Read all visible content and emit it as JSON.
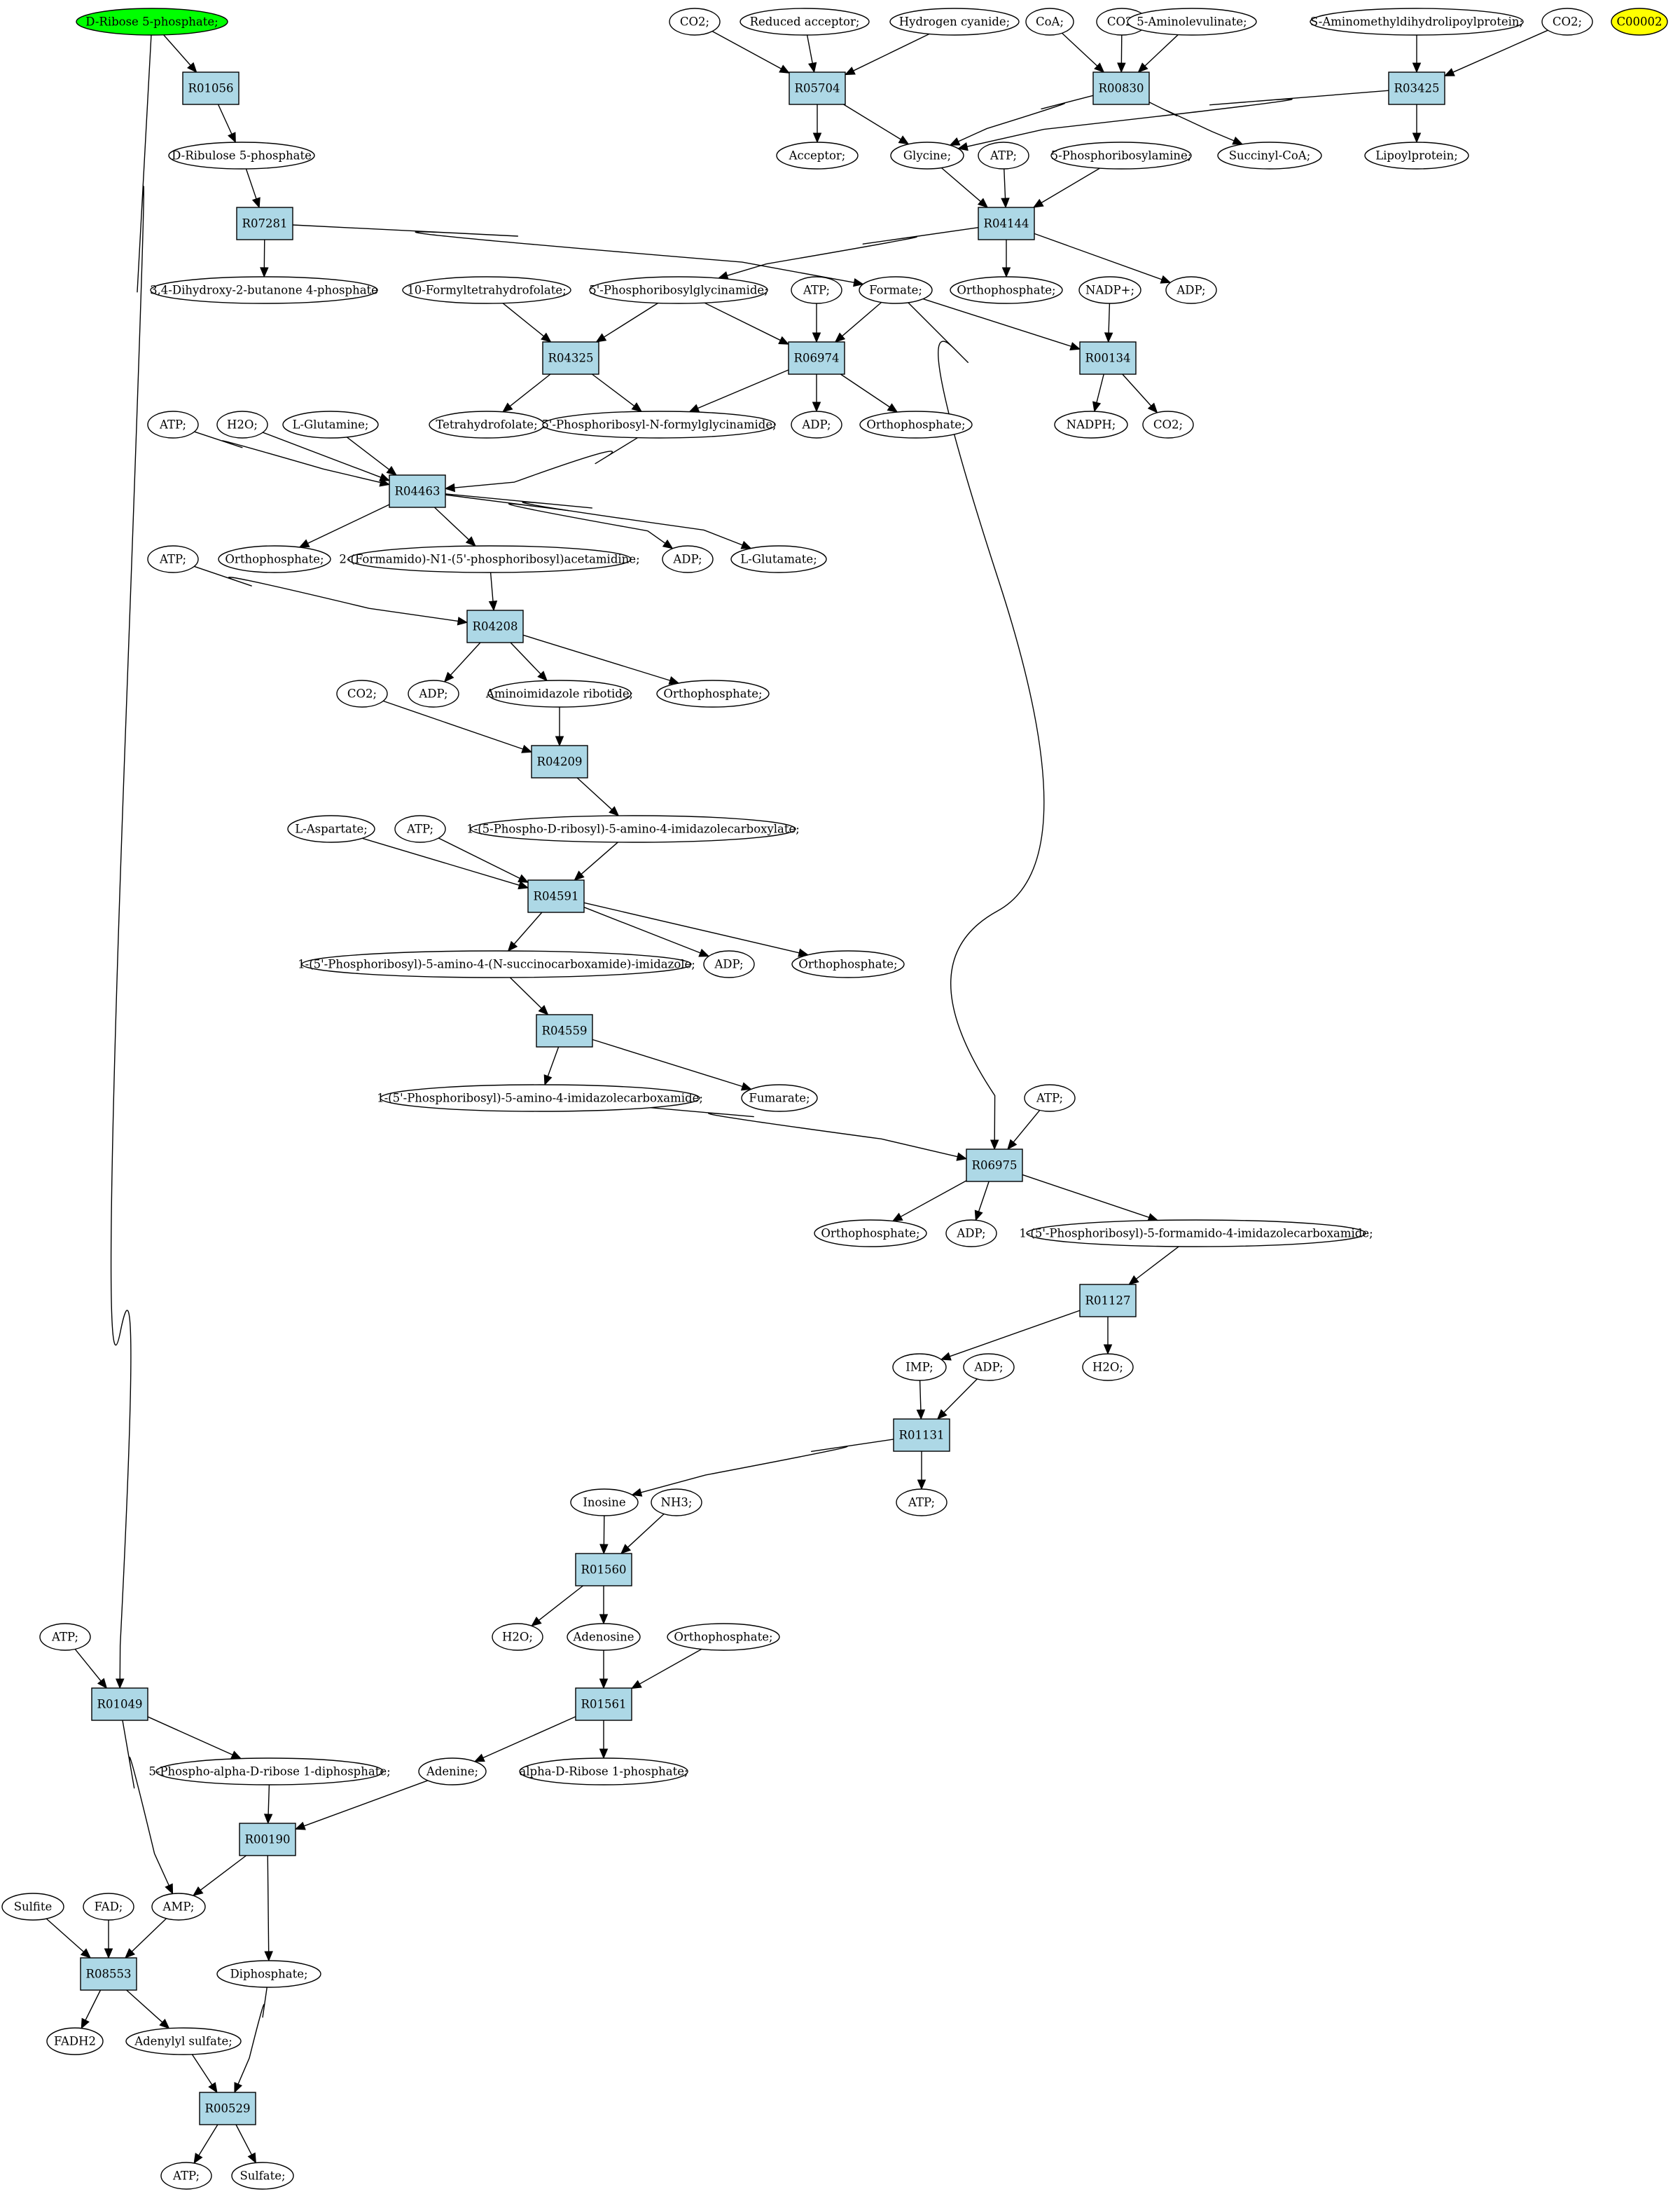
{
  "colors": {
    "compound": "#ffffff",
    "reaction": "#add8e6",
    "start": "#00ff00",
    "target": "#ffff00",
    "stroke": "#000000"
  },
  "nodes": {
    "c_r5p": {
      "label": "D-Ribose 5-phosphate;",
      "type": "start"
    },
    "r01056": {
      "label": "R01056",
      "type": "reaction"
    },
    "c_ru5p": {
      "label": "D-Ribulose 5-phosphate",
      "type": "compound"
    },
    "r07281": {
      "label": "R07281",
      "type": "reaction"
    },
    "c_dhbp": {
      "label": "3,4-Dihydroxy-2-butanone 4-phosphate",
      "type": "compound"
    },
    "c_co2_a": {
      "label": "CO2;",
      "type": "compound"
    },
    "c_redacc": {
      "label": "Reduced acceptor;",
      "type": "compound"
    },
    "c_hcn": {
      "label": "Hydrogen cyanide;",
      "type": "compound"
    },
    "c_coa": {
      "label": "CoA;",
      "type": "compound"
    },
    "c_co2_b": {
      "label": "CO2;",
      "type": "compound"
    },
    "c_ala": {
      "label": "5-Aminolevulinate;",
      "type": "compound"
    },
    "c_samdl": {
      "label": "S-Aminomethyldihydrolipoylprotein;",
      "type": "compound"
    },
    "c_co2_c": {
      "label": "CO2;",
      "type": "compound"
    },
    "c_c00002": {
      "label": "C00002",
      "type": "target"
    },
    "r05704": {
      "label": "R05704",
      "type": "reaction"
    },
    "r00830": {
      "label": "R00830",
      "type": "reaction"
    },
    "r03425": {
      "label": "R03425",
      "type": "reaction"
    },
    "c_acceptor": {
      "label": "Acceptor;",
      "type": "compound"
    },
    "c_glycine": {
      "label": "Glycine;",
      "type": "compound"
    },
    "c_atp_1": {
      "label": "ATP;",
      "type": "compound"
    },
    "c_prpa": {
      "label": "5-Phosphoribosylamine;",
      "type": "compound"
    },
    "c_succoa": {
      "label": "Succinyl-CoA;",
      "type": "compound"
    },
    "c_lipoyl": {
      "label": "Lipoylprotein;",
      "type": "compound"
    },
    "r04144": {
      "label": "R04144",
      "type": "reaction"
    },
    "c_fthf": {
      "label": "10-Formyltetrahydrofolate;",
      "type": "compound"
    },
    "c_gar": {
      "label": "5'-Phosphoribosylglycinamide;",
      "type": "compound"
    },
    "c_atp_2": {
      "label": "ATP;",
      "type": "compound"
    },
    "c_formate": {
      "label": "Formate;",
      "type": "compound"
    },
    "c_pi_1": {
      "label": "Orthophosphate;",
      "type": "compound"
    },
    "c_nadp": {
      "label": "NADP+;",
      "type": "compound"
    },
    "c_adp_1": {
      "label": "ADP;",
      "type": "compound"
    },
    "r04325": {
      "label": "R04325",
      "type": "reaction"
    },
    "r06974": {
      "label": "R06974",
      "type": "reaction"
    },
    "r00134": {
      "label": "R00134",
      "type": "reaction"
    },
    "c_thf": {
      "label": "Tetrahydrofolate;",
      "type": "compound"
    },
    "c_fgar": {
      "label": "5'-Phosphoribosyl-N-formylglycinamide;",
      "type": "compound"
    },
    "c_adp_2": {
      "label": "ADP;",
      "type": "compound"
    },
    "c_pi_2": {
      "label": "Orthophosphate;",
      "type": "compound"
    },
    "c_nadph": {
      "label": "NADPH;",
      "type": "compound"
    },
    "c_co2_d": {
      "label": "CO2;",
      "type": "compound"
    },
    "c_atp_3": {
      "label": "ATP;",
      "type": "compound"
    },
    "c_h2o_1": {
      "label": "H2O;",
      "type": "compound"
    },
    "c_gln": {
      "label": "L-Glutamine;",
      "type": "compound"
    },
    "r04463": {
      "label": "R04463",
      "type": "reaction"
    },
    "c_pi_3": {
      "label": "Orthophosphate;",
      "type": "compound"
    },
    "c_fgam": {
      "label": "2-(Formamido)-N1-(5'-phosphoribosyl)acetamidine;",
      "type": "compound"
    },
    "c_adp_3": {
      "label": "ADP;",
      "type": "compound"
    },
    "c_glu": {
      "label": "L-Glutamate;",
      "type": "compound"
    },
    "c_atp_4": {
      "label": "ATP;",
      "type": "compound"
    },
    "r04208": {
      "label": "R04208",
      "type": "reaction"
    },
    "c_co2_e": {
      "label": "CO2;",
      "type": "compound"
    },
    "c_adp_4": {
      "label": "ADP;",
      "type": "compound"
    },
    "c_air": {
      "label": "Aminoimidazole ribotide;",
      "type": "compound"
    },
    "c_pi_4": {
      "label": "Orthophosphate;",
      "type": "compound"
    },
    "r04209": {
      "label": "R04209",
      "type": "reaction"
    },
    "c_asp": {
      "label": "L-Aspartate;",
      "type": "compound"
    },
    "c_atp_5": {
      "label": "ATP;",
      "type": "compound"
    },
    "c_cair": {
      "label": "1-(5-Phospho-D-ribosyl)-5-amino-4-imidazolecarboxylate;",
      "type": "compound"
    },
    "r04591": {
      "label": "R04591",
      "type": "reaction"
    },
    "c_saicar": {
      "label": "1-(5'-Phosphoribosyl)-5-amino-4-(N-succinocarboxamide)-imidazole;",
      "type": "compound"
    },
    "c_adp_5": {
      "label": "ADP;",
      "type": "compound"
    },
    "c_pi_5": {
      "label": "Orthophosphate;",
      "type": "compound"
    },
    "r04559": {
      "label": "R04559",
      "type": "reaction"
    },
    "c_aicar": {
      "label": "1-(5'-Phosphoribosyl)-5-amino-4-imidazolecarboxamide;",
      "type": "compound"
    },
    "c_fum": {
      "label": "Fumarate;",
      "type": "compound"
    },
    "c_atp_6": {
      "label": "ATP;",
      "type": "compound"
    },
    "r06975": {
      "label": "R06975",
      "type": "reaction"
    },
    "c_pi_6": {
      "label": "Orthophosphate;",
      "type": "compound"
    },
    "c_adp_6": {
      "label": "ADP;",
      "type": "compound"
    },
    "c_faicar": {
      "label": "1-(5'-Phosphoribosyl)-5-formamido-4-imidazolecarboxamide;",
      "type": "compound"
    },
    "r01127": {
      "label": "R01127",
      "type": "reaction"
    },
    "c_imp": {
      "label": "IMP;",
      "type": "compound"
    },
    "c_adp_7": {
      "label": "ADP;",
      "type": "compound"
    },
    "c_h2o_2": {
      "label": "H2O;",
      "type": "compound"
    },
    "r01131": {
      "label": "R01131",
      "type": "reaction"
    },
    "c_inosine": {
      "label": "Inosine",
      "type": "compound"
    },
    "c_nh3": {
      "label": "NH3;",
      "type": "compound"
    },
    "c_atp_7": {
      "label": "ATP;",
      "type": "compound"
    },
    "r01560": {
      "label": "R01560",
      "type": "reaction"
    },
    "c_h2o_3": {
      "label": "H2O;",
      "type": "compound"
    },
    "c_adenosine": {
      "label": "Adenosine",
      "type": "compound"
    },
    "c_pi_7": {
      "label": "Orthophosphate;",
      "type": "compound"
    },
    "c_atp_8": {
      "label": "ATP;",
      "type": "compound"
    },
    "r01049": {
      "label": "R01049",
      "type": "reaction"
    },
    "r01561": {
      "label": "R01561",
      "type": "reaction"
    },
    "c_prpp": {
      "label": "5-Phospho-alpha-D-ribose 1-diphosphate;",
      "type": "compound"
    },
    "c_adenine": {
      "label": "Adenine;",
      "type": "compound"
    },
    "c_r1p": {
      "label": "alpha-D-Ribose 1-phosphate;",
      "type": "compound"
    },
    "r00190": {
      "label": "R00190",
      "type": "reaction"
    },
    "c_sulfite": {
      "label": "Sulfite",
      "type": "compound"
    },
    "c_fad": {
      "label": "FAD;",
      "type": "compound"
    },
    "c_amp": {
      "label": "AMP;",
      "type": "compound"
    },
    "r08553": {
      "label": "R08553",
      "type": "reaction"
    },
    "c_ppi": {
      "label": "Diphosphate;",
      "type": "compound"
    },
    "c_fadh2": {
      "label": "FADH2",
      "type": "compound"
    },
    "c_aps": {
      "label": "Adenylyl sulfate;",
      "type": "compound"
    },
    "r00529": {
      "label": "R00529",
      "type": "reaction"
    },
    "c_atp_9": {
      "label": "ATP;",
      "type": "compound"
    },
    "c_sulfate": {
      "label": "Sulfate;",
      "type": "compound"
    }
  },
  "edges": [
    [
      "c_r5p",
      "r01056"
    ],
    [
      "r01056",
      "c_ru5p"
    ],
    [
      "c_ru5p",
      "r07281"
    ],
    [
      "r07281",
      "c_dhbp"
    ],
    [
      "r07281",
      "c_formate"
    ],
    [
      "c_r5p",
      "r01049"
    ],
    [
      "c_co2_a",
      "r05704"
    ],
    [
      "c_redacc",
      "r05704"
    ],
    [
      "c_hcn",
      "r05704"
    ],
    [
      "r05704",
      "c_acceptor"
    ],
    [
      "r05704",
      "c_glycine"
    ],
    [
      "c_coa",
      "r00830"
    ],
    [
      "c_co2_b",
      "r00830"
    ],
    [
      "c_ala",
      "r00830"
    ],
    [
      "r00830",
      "c_glycine"
    ],
    [
      "r00830",
      "c_succoa"
    ],
    [
      "c_samdl",
      "r03425"
    ],
    [
      "c_co2_c",
      "r03425"
    ],
    [
      "r03425",
      "c_glycine"
    ],
    [
      "r03425",
      "c_lipoyl"
    ],
    [
      "c_glycine",
      "r04144"
    ],
    [
      "c_atp_1",
      "r04144"
    ],
    [
      "c_prpa",
      "r04144"
    ],
    [
      "r04144",
      "c_gar"
    ],
    [
      "r04144",
      "c_pi_1"
    ],
    [
      "r04144",
      "c_adp_1"
    ],
    [
      "c_fthf",
      "r04325"
    ],
    [
      "c_gar",
      "r04325"
    ],
    [
      "r04325",
      "c_thf"
    ],
    [
      "r04325",
      "c_fgar"
    ],
    [
      "c_gar",
      "r06974"
    ],
    [
      "c_atp_2",
      "r06974"
    ],
    [
      "c_formate",
      "r06974"
    ],
    [
      "r06974",
      "c_fgar"
    ],
    [
      "r06974",
      "c_adp_2"
    ],
    [
      "r06974",
      "c_pi_2"
    ],
    [
      "c_formate",
      "r00134"
    ],
    [
      "c_nadp",
      "r00134"
    ],
    [
      "r00134",
      "c_nadph"
    ],
    [
      "r00134",
      "c_co2_d"
    ],
    [
      "c_formate",
      "r06975"
    ],
    [
      "c_atp_3",
      "r04463"
    ],
    [
      "c_h2o_1",
      "r04463"
    ],
    [
      "c_gln",
      "r04463"
    ],
    [
      "c_fgar",
      "r04463"
    ],
    [
      "r04463",
      "c_pi_3"
    ],
    [
      "r04463",
      "c_fgam"
    ],
    [
      "r04463",
      "c_adp_3"
    ],
    [
      "r04463",
      "c_glu"
    ],
    [
      "c_atp_4",
      "r04208"
    ],
    [
      "c_fgam",
      "r04208"
    ],
    [
      "r04208",
      "c_adp_4"
    ],
    [
      "r04208",
      "c_air"
    ],
    [
      "r04208",
      "c_pi_4"
    ],
    [
      "c_co2_e",
      "r04209"
    ],
    [
      "c_air",
      "r04209"
    ],
    [
      "r04209",
      "c_cair"
    ],
    [
      "c_asp",
      "r04591"
    ],
    [
      "c_atp_5",
      "r04591"
    ],
    [
      "c_cair",
      "r04591"
    ],
    [
      "r04591",
      "c_saicar"
    ],
    [
      "r04591",
      "c_adp_5"
    ],
    [
      "r04591",
      "c_pi_5"
    ],
    [
      "c_saicar",
      "r04559"
    ],
    [
      "r04559",
      "c_aicar"
    ],
    [
      "r04559",
      "c_fum"
    ],
    [
      "c_aicar",
      "r06975"
    ],
    [
      "c_atp_6",
      "r06975"
    ],
    [
      "r06975",
      "c_pi_6"
    ],
    [
      "r06975",
      "c_adp_6"
    ],
    [
      "r06975",
      "c_faicar"
    ],
    [
      "c_faicar",
      "r01127"
    ],
    [
      "r01127",
      "c_imp"
    ],
    [
      "r01127",
      "c_h2o_2"
    ],
    [
      "c_imp",
      "r01131"
    ],
    [
      "c_adp_7",
      "r01131"
    ],
    [
      "r01131",
      "c_inosine"
    ],
    [
      "r01131",
      "c_atp_7"
    ],
    [
      "c_inosine",
      "r01560"
    ],
    [
      "c_nh3",
      "r01560"
    ],
    [
      "r01560",
      "c_h2o_3"
    ],
    [
      "r01560",
      "c_adenosine"
    ],
    [
      "c_adenosine",
      "r01561"
    ],
    [
      "c_pi_7",
      "r01561"
    ],
    [
      "r01561",
      "c_adenine"
    ],
    [
      "r01561",
      "c_r1p"
    ],
    [
      "c_atp_8",
      "r01049"
    ],
    [
      "r01049",
      "c_prpp"
    ],
    [
      "r01049",
      "c_amp"
    ],
    [
      "c_prpp",
      "r00190"
    ],
    [
      "c_adenine",
      "r00190"
    ],
    [
      "r00190",
      "c_amp"
    ],
    [
      "r00190",
      "c_ppi"
    ],
    [
      "c_sulfite",
      "r08553"
    ],
    [
      "c_fad",
      "r08553"
    ],
    [
      "c_amp",
      "r08553"
    ],
    [
      "r08553",
      "c_fadh2"
    ],
    [
      "r08553",
      "c_aps"
    ],
    [
      "c_aps",
      "r00529"
    ],
    [
      "c_ppi",
      "r00529"
    ],
    [
      "r00529",
      "c_atp_9"
    ],
    [
      "r00529",
      "c_sulfate"
    ]
  ]
}
